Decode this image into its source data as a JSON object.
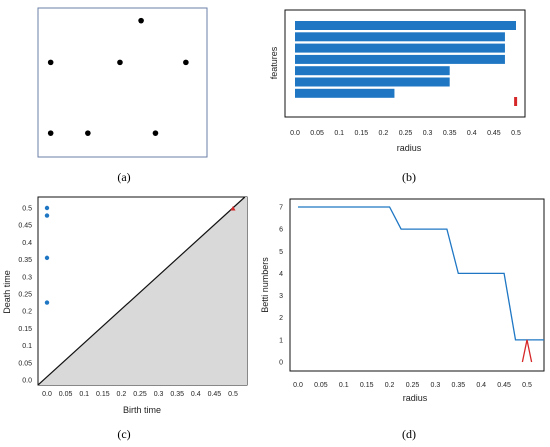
{
  "captions": [
    "(a)",
    "(b)",
    "(c)",
    "(d)"
  ],
  "panel_a": {
    "points": [
      {
        "x": 0.61,
        "y": 0.915
      },
      {
        "x": 0.075,
        "y": 0.635
      },
      {
        "x": 0.485,
        "y": 0.635
      },
      {
        "x": 0.875,
        "y": 0.635
      },
      {
        "x": 0.075,
        "y": 0.16
      },
      {
        "x": 0.295,
        "y": 0.16
      },
      {
        "x": 0.695,
        "y": 0.16
      }
    ]
  },
  "chart_data": [
    {
      "id": "b",
      "type": "bar",
      "orientation": "horizontal",
      "xlabel": "radius",
      "ylabel": "features",
      "xlim": [
        0,
        0.5
      ],
      "xticks": [
        "0.0",
        "0.05",
        "0.1",
        "0.15",
        "0.2",
        "0.25",
        "0.3",
        "0.35",
        "0.4",
        "0.45",
        "0.5"
      ],
      "series": [
        {
          "color": "#1f77c4",
          "values": [
            0.5,
            0.475,
            0.475,
            0.475,
            0.35,
            0.35,
            0.225
          ]
        },
        {
          "color": "#d62728",
          "values": [
            0.0
          ]
        }
      ],
      "red_bar": {
        "from": 0.498,
        "to": 0.5
      }
    },
    {
      "id": "c",
      "type": "scatter",
      "xlabel": "Birth time",
      "ylabel": "Death time",
      "xlim": [
        0,
        0.5
      ],
      "ylim": [
        0,
        0.5
      ],
      "xticks": [
        "0.0",
        "0.05",
        "0.1",
        "0.15",
        "0.2",
        "0.25",
        "0.3",
        "0.35",
        "0.4",
        "0.45",
        "0.5"
      ],
      "yticks": [
        "0.0",
        "0.05",
        "0.1",
        "0.15",
        "0.2",
        "0.25",
        "0.3",
        "0.35",
        "0.4",
        "0.45",
        "0.5"
      ],
      "series": [
        {
          "color": "#1f77c4",
          "points": [
            [
              0,
              0.5
            ],
            [
              0,
              0.478
            ],
            [
              0,
              0.355
            ],
            [
              0,
              0.225
            ]
          ]
        },
        {
          "color": "#d62728",
          "points": [
            [
              0.5,
              0.5
            ]
          ]
        }
      ]
    },
    {
      "id": "d",
      "type": "line",
      "xlabel": "radius",
      "ylabel": "Betti numbers",
      "xlim": [
        0,
        0.5
      ],
      "ylim": [
        0,
        7
      ],
      "xticks": [
        "0.0",
        "0.05",
        "0.1",
        "0.15",
        "0.2",
        "0.25",
        "0.3",
        "0.35",
        "0.4",
        "0.45",
        "0.5"
      ],
      "yticks": [
        "0",
        "1",
        "2",
        "3",
        "4",
        "5",
        "6",
        "7"
      ],
      "series": [
        {
          "color": "#1f77c4",
          "points": [
            [
              0,
              7
            ],
            [
              0.2,
              7
            ],
            [
              0.225,
              6
            ],
            [
              0.325,
              6
            ],
            [
              0.35,
              4
            ],
            [
              0.45,
              4
            ],
            [
              0.475,
              1
            ],
            [
              0.55,
              1
            ]
          ]
        },
        {
          "color": "#d62728",
          "points": [
            [
              0.49,
              0
            ],
            [
              0.5,
              1
            ],
            [
              0.51,
              0
            ]
          ]
        }
      ]
    }
  ]
}
